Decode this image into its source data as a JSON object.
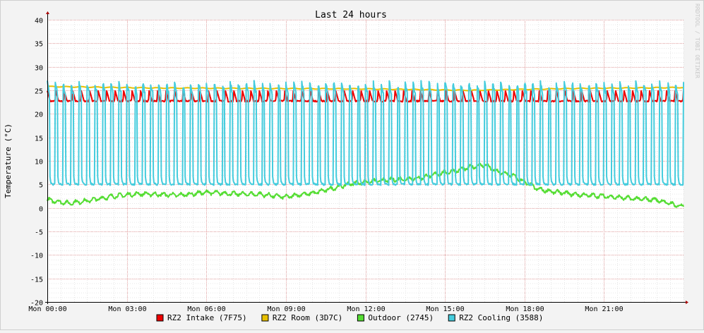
{
  "chart_data": {
    "type": "line",
    "title": "Last 24 hours",
    "ylabel": "Temperature (°C)",
    "watermark": "RRDTOOL / TOBI OETIKER",
    "ylim": [
      -20,
      40
    ],
    "yticks": [
      40,
      35,
      30,
      25,
      20,
      15,
      10,
      5,
      0,
      -5,
      -10,
      -15,
      -20
    ],
    "xlim_hours": [
      0,
      24
    ],
    "xticks": [
      {
        "label": "Mon 00:00",
        "hour": 0
      },
      {
        "label": "Mon 03:00",
        "hour": 3
      },
      {
        "label": "Mon 06:00",
        "hour": 6
      },
      {
        "label": "Mon 09:00",
        "hour": 9
      },
      {
        "label": "Mon 12:00",
        "hour": 12
      },
      {
        "label": "Mon 15:00",
        "hour": 15
      },
      {
        "label": "Mon 18:00",
        "hour": 18
      },
      {
        "label": "Mon 21:00",
        "hour": 21
      }
    ],
    "grid": true,
    "legend_position": "bottom",
    "series": [
      {
        "name": "RZ2 Intake (7F75)",
        "color": "#ee0000",
        "pattern": "sawtooth",
        "cycle_hours": 0.32,
        "low": 22.7,
        "high": 24.9,
        "anchors": [
          [
            0,
            23.8
          ],
          [
            24,
            23.8
          ]
        ]
      },
      {
        "name": "RZ2 Room (3D7C)",
        "color": "#e8c000",
        "pattern": "smooth",
        "anchors": [
          [
            0,
            25.8
          ],
          [
            4,
            25.5
          ],
          [
            12,
            25.3
          ],
          [
            16,
            25.0
          ],
          [
            20,
            25.4
          ],
          [
            24,
            25.6
          ]
        ]
      },
      {
        "name": "Outdoor (2745)",
        "color": "#55dd33",
        "pattern": "noisy",
        "anchors": [
          [
            0,
            1.7
          ],
          [
            0.8,
            1.0
          ],
          [
            1.5,
            1.5
          ],
          [
            2.5,
            2.5
          ],
          [
            3.5,
            3.0
          ],
          [
            5,
            2.7
          ],
          [
            6,
            3.3
          ],
          [
            7,
            3.0
          ],
          [
            8,
            2.9
          ],
          [
            9,
            2.3
          ],
          [
            9.5,
            2.8
          ],
          [
            10,
            3.1
          ],
          [
            11,
            4.5
          ],
          [
            11.5,
            5.2
          ],
          [
            12,
            5.5
          ],
          [
            13,
            6.0
          ],
          [
            14,
            6.3
          ],
          [
            14.8,
            7.3
          ],
          [
            15.5,
            8.0
          ],
          [
            16,
            8.7
          ],
          [
            16.5,
            9.2
          ],
          [
            17,
            7.6
          ],
          [
            17.5,
            7.0
          ],
          [
            18,
            5.5
          ],
          [
            18.5,
            4.0
          ],
          [
            19,
            3.5
          ],
          [
            20,
            2.8
          ],
          [
            21,
            2.5
          ],
          [
            22,
            2.0
          ],
          [
            23,
            1.7
          ],
          [
            23.9,
            0.3
          ],
          [
            24,
            0.4
          ]
        ]
      },
      {
        "name": "RZ2 Cooling (3588)",
        "color": "#44ccdd",
        "pattern": "pulse",
        "cycle_hours": 0.3,
        "low": 5.0,
        "high": 26.5,
        "anchors": [
          [
            0,
            5.0
          ],
          [
            24,
            5.0
          ]
        ]
      }
    ]
  }
}
